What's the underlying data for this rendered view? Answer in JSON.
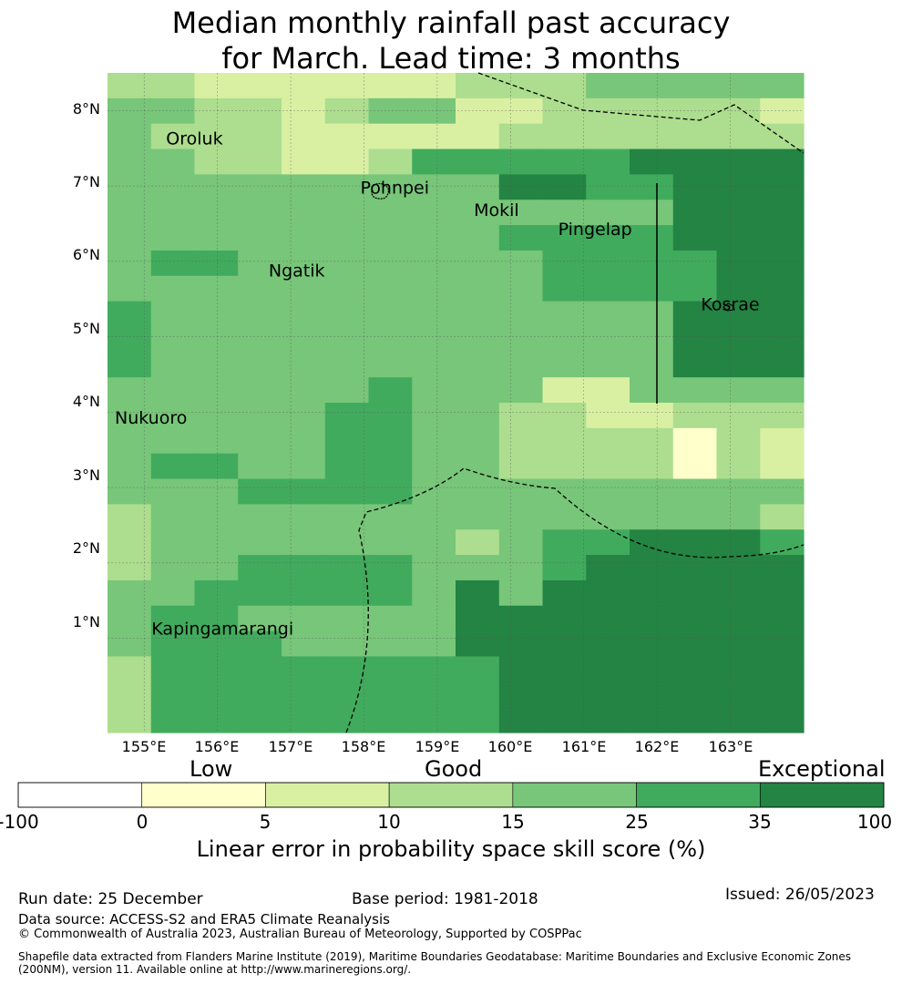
{
  "title": {
    "line1": "Median monthly rainfall past accuracy",
    "line2": "for March. Lead time: 3 months"
  },
  "map": {
    "lat_labels": [
      "8°N",
      "7°N",
      "6°N",
      "5°N",
      "4°N",
      "3°N",
      "2°N",
      "1°N"
    ],
    "lon_labels": [
      "155°E",
      "156°E",
      "157°E",
      "158°E",
      "159°E",
      "160°E",
      "161°E",
      "162°E",
      "163°E"
    ],
    "lon_range": [
      154.5,
      164.0
    ],
    "lat_range": [
      -0.25,
      8.5
    ],
    "grid_rows": [
      "3322222233344444",
      "4433234422333332",
      "4333222223333333",
      "4433223555556666",
      "4444444446655666",
      "4444444444444666",
      "4444444445555666",
      "4554444444555566",
      "4444444444555566",
      "5444444444444666",
      "5444444444444666",
      "5444444444444666",
      "4444445444224444",
      "4444455443322333",
      "4444455443333132",
      "4554455443333132",
      "4445555444444444",
      "3444444444444443",
      "3444444434556665",
      "3445555444566666",
      "4455555464666666",
      "4554444466666666",
      "4555444466666666",
      "3555555556666666",
      "3555555556666666",
      "3555555556666666"
    ],
    "colors": [
      "#ffffff",
      "#ffffcc",
      "#d9f0a3",
      "#addd8e",
      "#78c679",
      "#41ab5d",
      "#238443"
    ],
    "places": [
      {
        "name": "Oroluk",
        "lon": 155.3,
        "lat": 7.55
      },
      {
        "name": "Pohnpei",
        "lon": 157.95,
        "lat": 6.9
      },
      {
        "name": "Mokil",
        "lon": 159.5,
        "lat": 6.6
      },
      {
        "name": "Pingelap",
        "lon": 160.65,
        "lat": 6.35
      },
      {
        "name": "Ngatik",
        "lon": 156.7,
        "lat": 5.8
      },
      {
        "name": "Kosrae",
        "lon": 162.6,
        "lat": 5.35
      },
      {
        "name": "Nukuoro",
        "lon": 154.6,
        "lat": 3.85
      },
      {
        "name": "Kapingamarangi",
        "lon": 155.1,
        "lat": 1.05
      }
    ]
  },
  "categories": {
    "low": "Low",
    "good": "Good",
    "exceptional": "Exceptional"
  },
  "colorbar": {
    "ticks": [
      "-100",
      "0",
      "5",
      "10",
      "15",
      "25",
      "35",
      "100"
    ],
    "colors": [
      "#ffffff",
      "#ffffcc",
      "#d9f0a3",
      "#addd8e",
      "#78c679",
      "#41ab5d",
      "#238443"
    ],
    "label": "Linear error in probability space skill score (%)"
  },
  "footer": {
    "run_date": "Run date: 25 December",
    "base_period": "Base period: 1981-2018",
    "issued": "Issued: 26/05/2023",
    "data_source": "Data source: ACCESS-S2 and ERA5 Climate Reanalysis",
    "copyright": "© Commonwealth of Australia 2023, Australian Bureau of Meteorology, Supported by COSPPac",
    "shapefile_line1": "Shapefile data extracted from Flanders Marine Institute (2019), Maritime Boundaries Geodatabase: Maritime Boundaries and Exclusive Economic Zones",
    "shapefile_line2": "(200NM), version 11. Available online at http://www.marineregions.org/."
  }
}
